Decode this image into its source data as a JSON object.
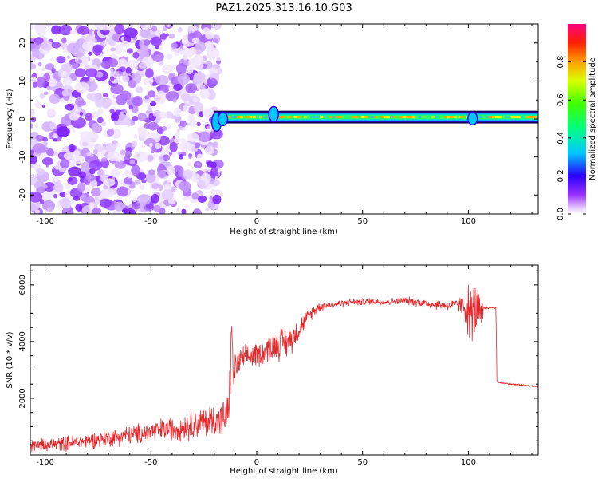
{
  "title": "PAZ1.2025.313.16.10.G03",
  "chart_data": [
    {
      "type": "heatmap",
      "name": "spectrogram",
      "xlabel": "Height of straight line (km)",
      "ylabel": "Frequency (Hz)",
      "xlim": [
        -107,
        133
      ],
      "ylim": [
        -25,
        25
      ],
      "x_ticks": [
        -100,
        -50,
        0,
        50,
        100
      ],
      "y_ticks": [
        -20,
        -10,
        0,
        10,
        20
      ],
      "noise_region_x": [
        -107,
        -20
      ],
      "signal_band": {
        "x_start": -20,
        "x_end": 133,
        "center_frequency_hz": 0.5,
        "width_hz": 2.5,
        "perturbations": [
          {
            "x": -19,
            "offset_hz": -2.5
          },
          {
            "x": -16,
            "offset_hz": -1.0
          },
          {
            "x": 8,
            "offset_hz": 1.5
          },
          {
            "x": 102,
            "offset_hz": -0.8
          }
        ]
      },
      "colorbar": {
        "label": "Normalized spectral amplitude",
        "range": [
          0.0,
          1.0
        ],
        "ticks": [
          0.0,
          0.2,
          0.4,
          0.6,
          0.8
        ],
        "tick_labels": [
          "0.0",
          "0.2",
          "0.4",
          "0.6",
          "0.8"
        ]
      }
    },
    {
      "type": "line",
      "name": "snr",
      "xlabel": "Height of straight line (km)",
      "ylabel": "SNR (10 * v/v)",
      "xlim": [
        -107,
        133
      ],
      "ylim": [
        0,
        6700
      ],
      "x_ticks": [
        -100,
        -50,
        0,
        50,
        100
      ],
      "y_ticks": [
        2000,
        4000,
        6000
      ],
      "color": "#e8262a",
      "x": [
        -107,
        -95,
        -85,
        -75,
        -65,
        -55,
        -45,
        -38,
        -32,
        -26,
        -22,
        -18,
        -16,
        -14,
        -12.5,
        -12,
        -11.5,
        -11,
        -10,
        -8,
        -5,
        -2,
        0,
        3,
        6,
        9,
        12,
        15,
        18,
        21,
        24,
        27,
        30,
        35,
        40,
        45,
        50,
        55,
        60,
        65,
        70,
        75,
        80,
        85,
        90,
        95,
        98,
        100,
        102,
        104,
        106,
        108,
        110,
        113,
        113.5,
        115,
        120,
        125,
        130,
        133
      ],
      "y": [
        300,
        380,
        450,
        550,
        650,
        760,
        880,
        950,
        1050,
        1150,
        1200,
        1250,
        1280,
        1350,
        2500,
        4700,
        3600,
        2700,
        3100,
        3300,
        3450,
        3500,
        3550,
        3600,
        3750,
        3900,
        3950,
        4000,
        4250,
        4550,
        4850,
        5100,
        5250,
        5300,
        5350,
        5400,
        5400,
        5420,
        5400,
        5420,
        5450,
        5400,
        5350,
        5300,
        5280,
        5300,
        5250,
        5100,
        4900,
        5200,
        4800,
        5200,
        5200,
        5200,
        2600,
        2550,
        2500,
        2470,
        2430,
        2400
      ],
      "noise_amplitude": [
        300,
        300,
        320,
        350,
        380,
        420,
        480,
        520,
        600,
        650,
        700,
        750,
        750,
        800,
        900,
        600,
        700,
        650,
        600,
        550,
        500,
        500,
        500,
        550,
        600,
        650,
        700,
        650,
        550,
        400,
        300,
        250,
        200,
        150,
        150,
        150,
        150,
        150,
        150,
        150,
        160,
        170,
        180,
        200,
        220,
        240,
        600,
        1100,
        1300,
        1100,
        800,
        80,
        60,
        50,
        40,
        40,
        40,
        40,
        40,
        40
      ]
    }
  ]
}
